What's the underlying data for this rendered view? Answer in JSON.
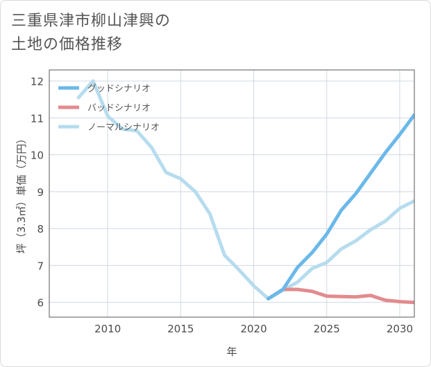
{
  "title": {
    "line1": "三重県津市柳山津興の",
    "line2": "土地の価格推移"
  },
  "chart_data": {
    "type": "line",
    "xlabel": "年",
    "ylabel": "坪（3.3㎡）単価（万円）",
    "xlim": [
      2006,
      2031
    ],
    "ylim": [
      5.6,
      12.3
    ],
    "xticks": [
      2010,
      2015,
      2020,
      2025,
      2030
    ],
    "yticks": [
      6,
      7,
      8,
      9,
      10,
      11,
      12
    ],
    "grid": true,
    "legend_position": "top-left",
    "series": [
      {
        "name": "グッドシナリオ",
        "color": "#6bb8ea",
        "x": [
          2021,
          2022,
          2023,
          2024,
          2025,
          2026,
          2027,
          2028,
          2029,
          2030,
          2031
        ],
        "y": [
          6.1,
          6.35,
          6.95,
          7.35,
          7.85,
          8.5,
          8.95,
          9.5,
          10.05,
          10.55,
          11.08
        ]
      },
      {
        "name": "バッドシナリオ",
        "color": "#e28b8e",
        "x": [
          2021,
          2022,
          2023,
          2024,
          2025,
          2026,
          2027,
          2028,
          2029,
          2030,
          2031
        ],
        "y": [
          6.1,
          6.35,
          6.35,
          6.3,
          6.17,
          6.16,
          6.15,
          6.19,
          6.06,
          6.02,
          6.0
        ]
      },
      {
        "name": "ノーマルシナリオ",
        "color": "#b6dcee",
        "x": [
          2008,
          2009,
          2010,
          2011,
          2012,
          2013,
          2014,
          2015,
          2016,
          2017,
          2018,
          2019,
          2020,
          2021,
          2022,
          2023,
          2024,
          2025,
          2026,
          2027,
          2028,
          2029,
          2030,
          2031
        ],
        "y": [
          11.55,
          12.0,
          11.05,
          10.7,
          10.65,
          10.2,
          9.52,
          9.35,
          9.0,
          8.4,
          7.28,
          6.88,
          6.45,
          6.1,
          6.33,
          6.55,
          6.92,
          7.08,
          7.45,
          7.67,
          7.97,
          8.2,
          8.55,
          8.75
        ]
      }
    ]
  }
}
